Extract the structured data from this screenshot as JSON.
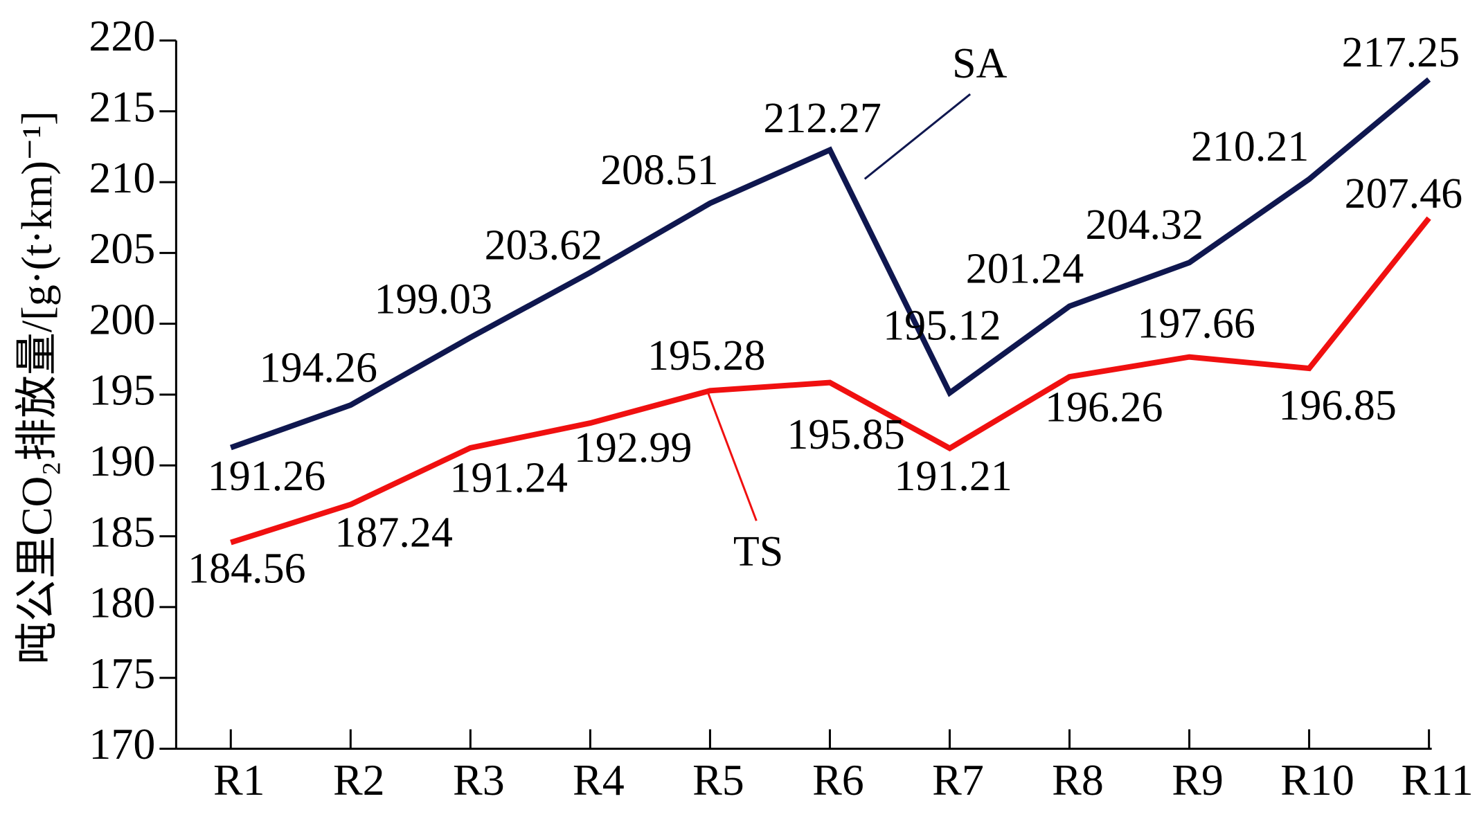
{
  "chart_data": {
    "type": "line",
    "y_label": "吨公里CO₂排放量/[g·(t·km)⁻¹]",
    "categories": [
      "R1",
      "R2",
      "R3",
      "R4",
      "R5",
      "R6",
      "R7",
      "R8",
      "R9",
      "R10",
      "R11"
    ],
    "series": [
      {
        "name": "SA",
        "color": "#0f174f",
        "values": [
          191.26,
          194.26,
          199.03,
          203.62,
          208.51,
          212.27,
          195.12,
          201.24,
          204.32,
          210.21,
          217.25
        ]
      },
      {
        "name": "TS",
        "color": "#f01010",
        "values": [
          184.56,
          187.24,
          191.24,
          192.99,
          195.28,
          195.85,
          191.21,
          196.26,
          197.66,
          196.85,
          207.46
        ]
      }
    ],
    "ylim": [
      170,
      220
    ],
    "yticks": [
      170,
      175,
      180,
      185,
      190,
      195,
      200,
      205,
      210,
      215,
      220
    ],
    "grid": false
  }
}
